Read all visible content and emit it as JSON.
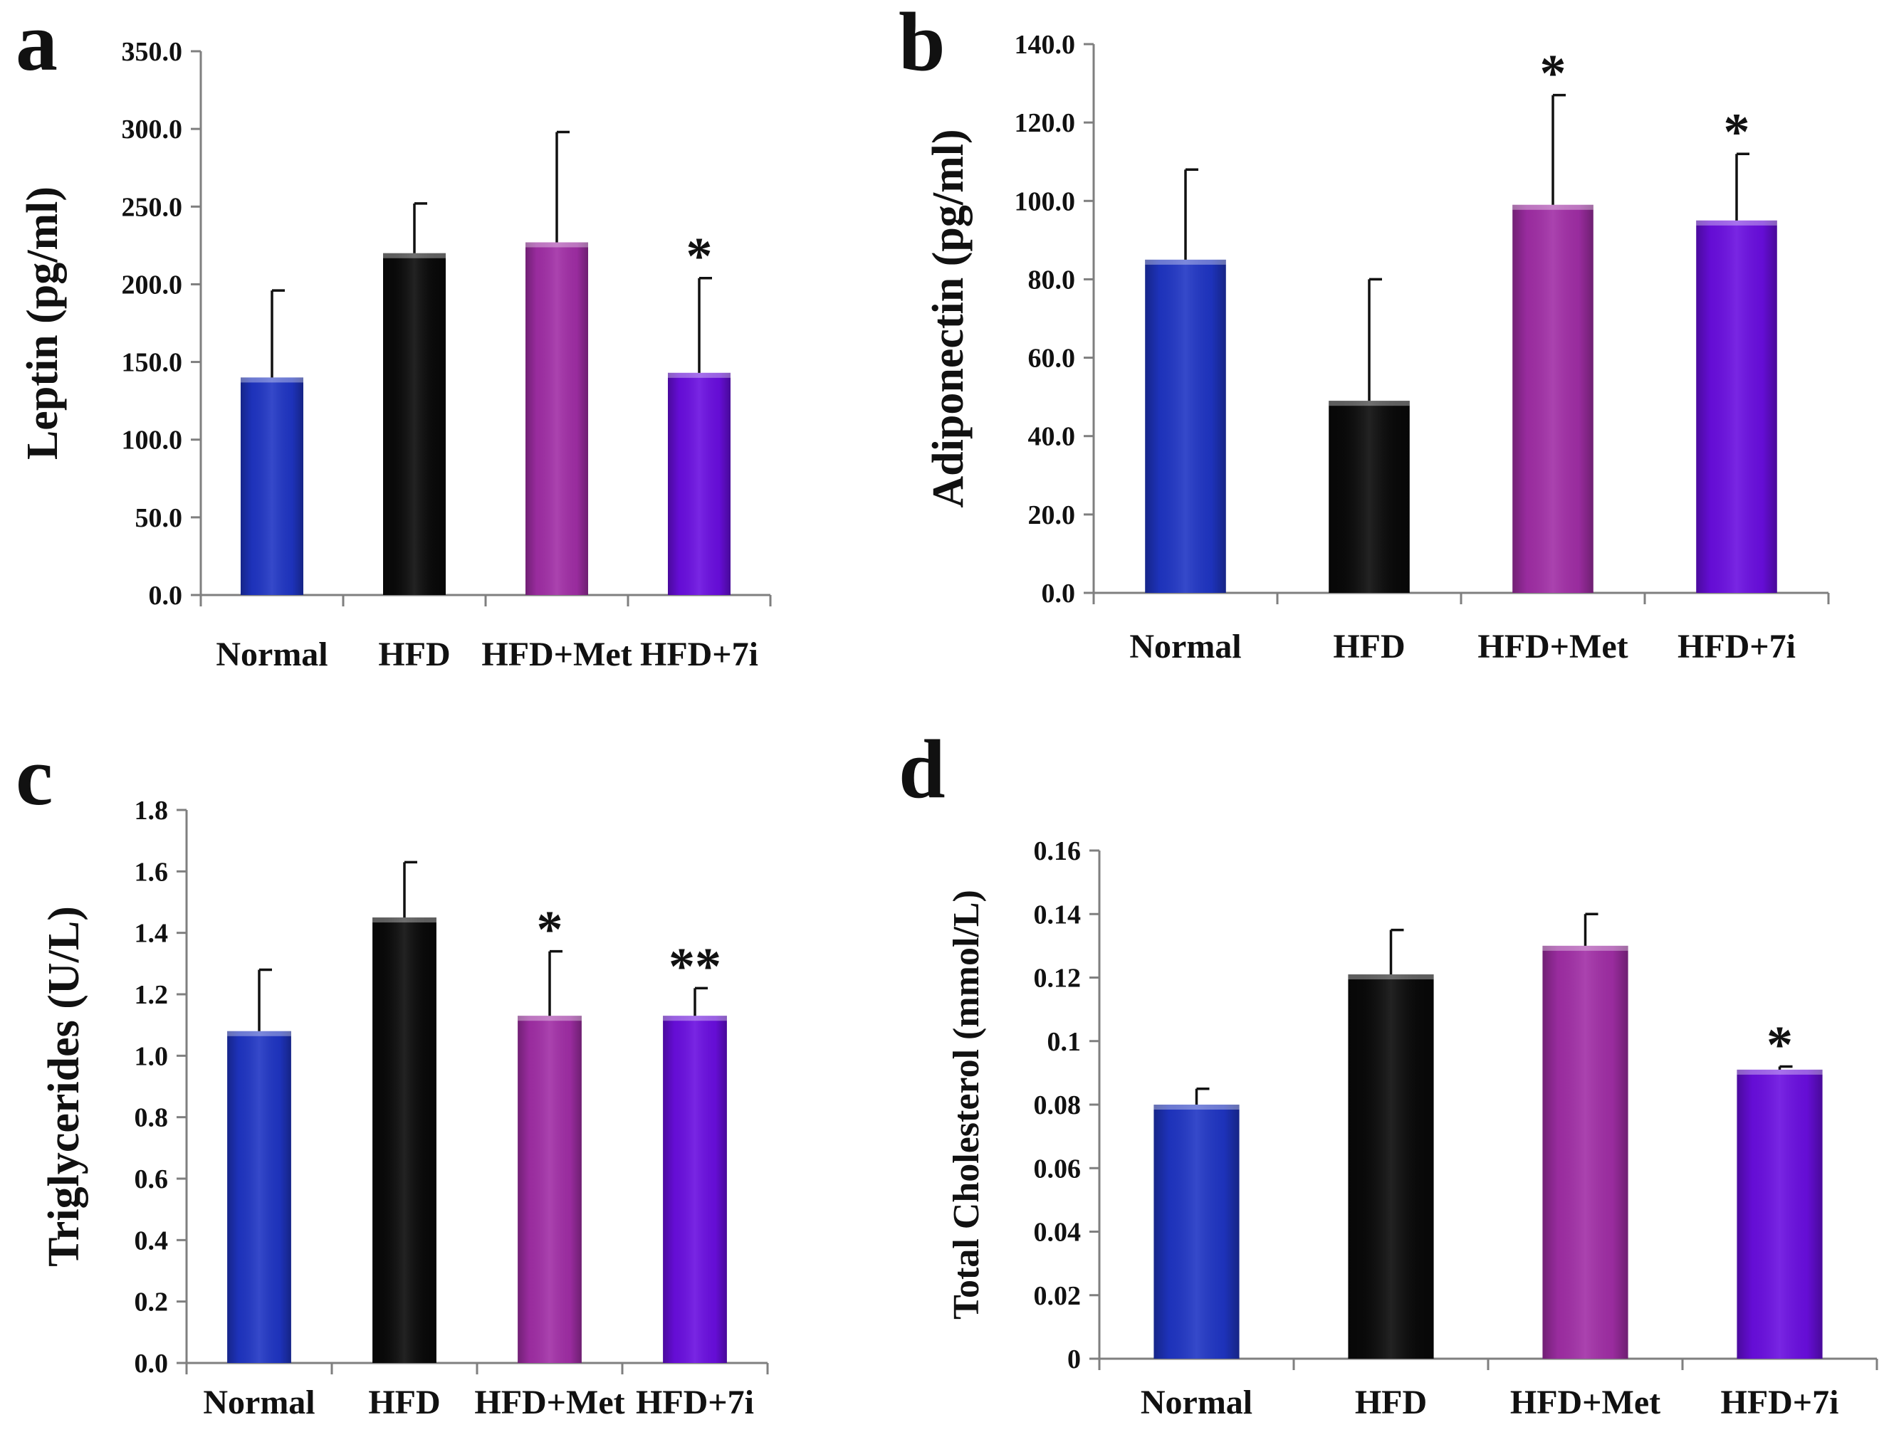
{
  "colors": {
    "Normal": "#1f35c4",
    "HFD": "#0a0a0a",
    "HFD+Met": "#a12ea6",
    "HFD+7i": "#6a0ee0"
  },
  "chart_data": [
    {
      "type": "bar",
      "panel": "a",
      "ylabel": "Leptin (pg/ml)",
      "categories": [
        "Normal",
        "HFD",
        "HFD+Met",
        "HFD+7i"
      ],
      "values": [
        140,
        220,
        227,
        143
      ],
      "errors": [
        56,
        32,
        71,
        61
      ],
      "significance": [
        "",
        "",
        "",
        "*"
      ],
      "ylim": [
        0,
        350
      ],
      "yticks": [
        "0.0",
        "50.0",
        "100.0",
        "150.0",
        "200.0",
        "250.0",
        "300.0",
        "350.0"
      ]
    },
    {
      "type": "bar",
      "panel": "b",
      "ylabel": "Adiponectin (pg/ml)",
      "categories": [
        "Normal",
        "HFD",
        "HFD+Met",
        "HFD+7i"
      ],
      "values": [
        85,
        49,
        99,
        95
      ],
      "errors": [
        23,
        31,
        28,
        17
      ],
      "significance": [
        "",
        "",
        "*",
        "*"
      ],
      "ylim": [
        0,
        140
      ],
      "yticks": [
        "0.0",
        "20.0",
        "40.0",
        "60.0",
        "80.0",
        "100.0",
        "120.0",
        "140.0"
      ]
    },
    {
      "type": "bar",
      "panel": "c",
      "ylabel": "Triglycerides (U/L)",
      "categories": [
        "Normal",
        "HFD",
        "HFD+Met",
        "HFD+7i"
      ],
      "values": [
        1.08,
        1.45,
        1.13,
        1.13
      ],
      "errors": [
        0.2,
        0.18,
        0.21,
        0.09
      ],
      "significance": [
        "",
        "",
        "*",
        "**"
      ],
      "ylim": [
        0,
        1.8
      ],
      "yticks": [
        "0.0",
        "0.2",
        "0.4",
        "0.6",
        "0.8",
        "1.0",
        "1.2",
        "1.4",
        "1.6",
        "1.8"
      ]
    },
    {
      "type": "bar",
      "panel": "d",
      "ylabel": "Total Cholesterol (mmol/L)",
      "categories": [
        "Normal",
        "HFD",
        "HFD+Met",
        "HFD+7i"
      ],
      "values": [
        0.08,
        0.121,
        0.13,
        0.091
      ],
      "errors": [
        0.005,
        0.014,
        0.01,
        0.001
      ],
      "significance": [
        "",
        "",
        "",
        "*"
      ],
      "ylim": [
        0,
        0.16
      ],
      "yticks": [
        "0",
        "0.02",
        "0.04",
        "0.06",
        "0.08",
        "0.1",
        "0.12",
        "0.14",
        "0.16"
      ]
    }
  ]
}
